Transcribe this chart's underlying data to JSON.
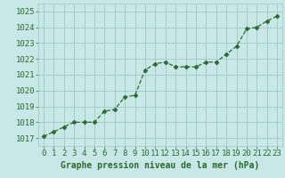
{
  "x": [
    0,
    1,
    2,
    3,
    4,
    5,
    6,
    7,
    8,
    9,
    10,
    11,
    12,
    13,
    14,
    15,
    16,
    17,
    18,
    19,
    20,
    21,
    22,
    23
  ],
  "y": [
    1017.1,
    1017.4,
    1017.7,
    1018.0,
    1018.0,
    1018.0,
    1018.7,
    1018.8,
    1019.6,
    1019.7,
    1021.3,
    1021.7,
    1021.8,
    1021.5,
    1021.5,
    1021.5,
    1021.8,
    1021.8,
    1022.3,
    1022.8,
    1023.9,
    1024.0,
    1024.4,
    1024.7
  ],
  "line_color": "#2d6a2d",
  "marker_color": "#2d6a2d",
  "bg_color": "#c8e8e8",
  "grid_color": "#a0c8c8",
  "xlabel": "Graphe pression niveau de la mer (hPa)",
  "xlabel_color": "#2d6a2d",
  "xlabel_fontsize": 7.0,
  "tick_color": "#2d6a2d",
  "tick_fontsize": 6.5,
  "ylim": [
    1016.5,
    1025.5
  ],
  "yticks": [
    1017,
    1018,
    1019,
    1020,
    1021,
    1022,
    1023,
    1024,
    1025
  ],
  "xlim": [
    -0.5,
    23.5
  ],
  "xticks": [
    0,
    1,
    2,
    3,
    4,
    5,
    6,
    7,
    8,
    9,
    10,
    11,
    12,
    13,
    14,
    15,
    16,
    17,
    18,
    19,
    20,
    21,
    22,
    23
  ]
}
